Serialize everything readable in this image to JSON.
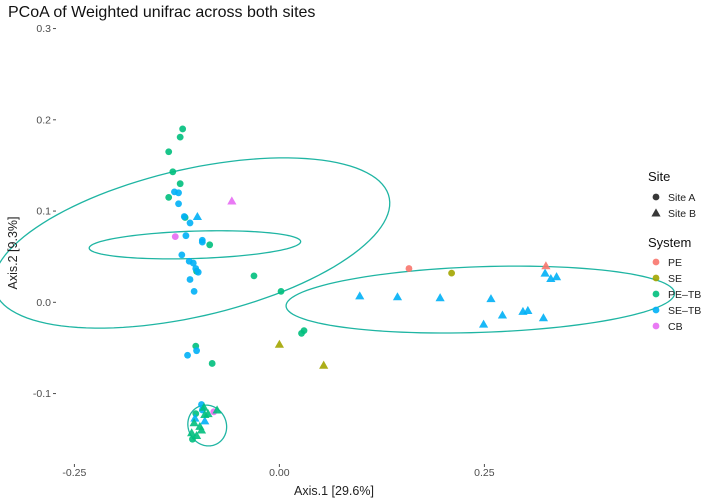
{
  "chart_data": {
    "type": "scatter",
    "title": "PCoA of Weighted unifrac across both sites",
    "xlabel": "Axis.1   [29.6%]",
    "ylabel": "Axis.2   [9.3%]",
    "xlim": [
      -0.27,
      0.43
    ],
    "ylim": [
      -0.175,
      0.305
    ],
    "x_ticks": [
      -0.25,
      0.0,
      0.25
    ],
    "x_tick_labels": [
      "-0.25",
      "0.00",
      "0.25"
    ],
    "y_ticks": [
      -0.1,
      0.0,
      0.1,
      0.2,
      0.3
    ],
    "y_tick_labels": [
      "-0.1",
      "0.0",
      "0.1",
      "0.2",
      "0.3"
    ],
    "grid": false,
    "legend_placement": "right",
    "legends": [
      {
        "title": "Site",
        "items": [
          {
            "label": "Site A",
            "shape": "circle"
          },
          {
            "label": "Site B",
            "shape": "triangle"
          }
        ]
      },
      {
        "title": "System",
        "items": [
          {
            "label": "PE",
            "color": "#F8766D"
          },
          {
            "label": "SE",
            "color": "#A3A500"
          },
          {
            "label": "PE–TB",
            "color": "#00BF7D"
          },
          {
            "label": "SE–TB",
            "color": "#00B0F6"
          },
          {
            "label": "CB",
            "color": "#E76BF3"
          }
        ]
      }
    ],
    "colors": {
      "PE": "#F8766D",
      "SE": "#A3A500",
      "PE-TB": "#00BF7D",
      "SE-TB": "#00B0F6",
      "CB": "#E76BF3",
      "ellipse": "#1FB5A3"
    },
    "ellipses": [
      {
        "center": [
          -0.103,
          0.063
        ],
        "rx": 0.015,
        "ry": 0.129,
        "angle_deg": 91.6
      },
      {
        "center": [
          -0.088,
          -0.135
        ],
        "rx": 0.022,
        "ry": 0.024,
        "angle_deg": 65
      },
      {
        "center": [
          -0.107,
          0.065
        ],
        "rx": 0.081,
        "ry": 0.246,
        "angle_deg": 101.5
      },
      {
        "center": [
          0.245,
          0.003
        ],
        "rx": 0.237,
        "ry": 0.036,
        "angle_deg": 1.7
      }
    ],
    "series": [
      {
        "system": "PE-TB",
        "site": "Site A",
        "points": [
          [
            -0.118,
            0.19
          ],
          [
            -0.121,
            0.181
          ],
          [
            -0.135,
            0.165
          ],
          [
            -0.13,
            0.143
          ],
          [
            -0.121,
            0.13
          ],
          [
            -0.135,
            0.115
          ],
          [
            -0.115,
            0.093
          ],
          [
            -0.085,
            0.063
          ],
          [
            -0.101,
            0.034
          ],
          [
            -0.031,
            0.029
          ],
          [
            -0.102,
            -0.048
          ],
          [
            -0.082,
            -0.067
          ],
          [
            0.002,
            0.012
          ],
          [
            0.03,
            -0.031
          ],
          [
            0.027,
            -0.034
          ],
          [
            -0.106,
            -0.15
          ],
          [
            -0.102,
            -0.122
          ]
        ]
      },
      {
        "system": "SE-TB",
        "site": "Site A",
        "points": [
          [
            -0.128,
            0.121
          ],
          [
            -0.123,
            0.12
          ],
          [
            -0.123,
            0.108
          ],
          [
            -0.116,
            0.094
          ],
          [
            -0.109,
            0.087
          ],
          [
            -0.114,
            0.073
          ],
          [
            -0.094,
            0.068
          ],
          [
            -0.094,
            0.066
          ],
          [
            -0.119,
            0.052
          ],
          [
            -0.11,
            0.045
          ],
          [
            -0.105,
            0.043
          ],
          [
            -0.102,
            0.037
          ],
          [
            -0.099,
            0.033
          ],
          [
            -0.109,
            0.025
          ],
          [
            -0.104,
            0.012
          ],
          [
            -0.101,
            -0.053
          ],
          [
            -0.112,
            -0.058
          ],
          [
            -0.095,
            -0.112
          ],
          [
            -0.094,
            -0.118
          ]
        ]
      },
      {
        "system": "CB",
        "site": "Site A",
        "points": [
          [
            -0.127,
            0.072
          ],
          [
            -0.08,
            -0.12
          ]
        ]
      },
      {
        "system": "PE",
        "site": "Site A",
        "points": [
          [
            0.158,
            0.037
          ]
        ]
      },
      {
        "system": "SE",
        "site": "Site A",
        "points": [
          [
            0.21,
            0.032
          ]
        ]
      },
      {
        "system": "SE-TB",
        "site": "Site B",
        "points": [
          [
            0.098,
            0.007
          ],
          [
            0.144,
            0.006
          ],
          [
            0.196,
            0.005
          ],
          [
            0.258,
            0.004
          ],
          [
            0.249,
            -0.024
          ],
          [
            0.272,
            -0.014
          ],
          [
            0.297,
            -0.01
          ],
          [
            0.303,
            -0.009
          ],
          [
            0.322,
            -0.017
          ],
          [
            0.324,
            0.032
          ],
          [
            0.331,
            0.026
          ],
          [
            0.338,
            0.028
          ],
          [
            -0.1,
            0.094
          ],
          [
            -0.103,
            -0.127
          ],
          [
            -0.091,
            -0.13
          ]
        ]
      },
      {
        "system": "PE",
        "site": "Site B",
        "points": [
          [
            0.325,
            0.04
          ]
        ]
      },
      {
        "system": "SE",
        "site": "Site B",
        "points": [
          [
            0.0,
            -0.046
          ],
          [
            0.054,
            -0.069
          ]
        ]
      },
      {
        "system": "CB",
        "site": "Site B",
        "points": [
          [
            -0.058,
            0.111
          ]
        ]
      },
      {
        "system": "PE-TB",
        "site": "Site B",
        "points": [
          [
            -0.092,
            -0.115
          ],
          [
            -0.087,
            -0.122
          ],
          [
            -0.076,
            -0.118
          ],
          [
            -0.104,
            -0.132
          ],
          [
            -0.097,
            -0.136
          ],
          [
            -0.095,
            -0.14
          ],
          [
            -0.107,
            -0.143
          ],
          [
            -0.101,
            -0.146
          ],
          [
            -0.091,
            -0.123
          ]
        ]
      }
    ]
  }
}
